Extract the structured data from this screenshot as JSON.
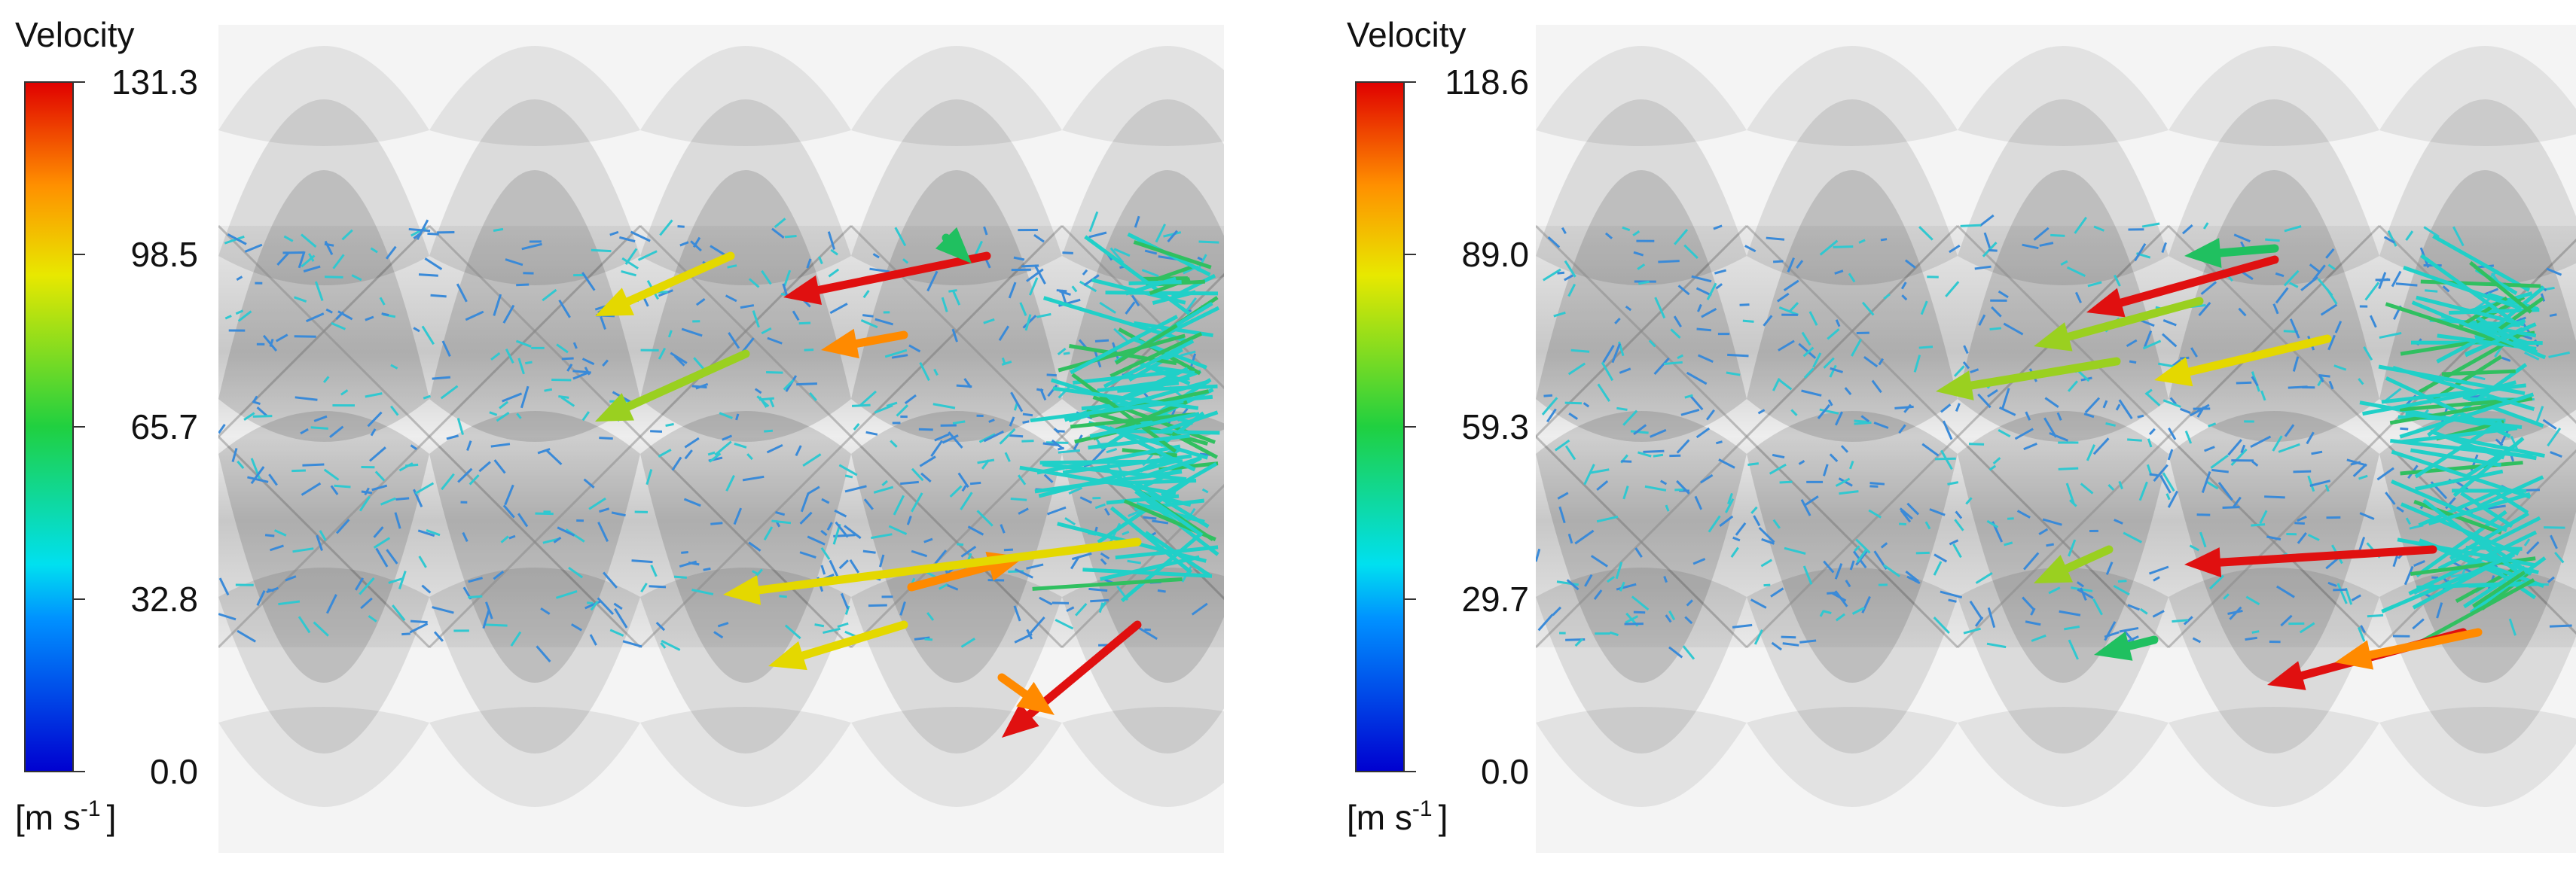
{
  "panels": [
    {
      "legend": {
        "title": "Velocity",
        "ticks": [
          "131.3",
          "98.5",
          "65.7",
          "32.8",
          "0.0"
        ],
        "unit": {
          "base": "[m s",
          "exponent": "-1",
          "close": "]"
        }
      }
    },
    {
      "legend": {
        "title": "Velocity",
        "ticks": [
          "118.6",
          "89.0",
          "59.3",
          "29.7",
          "0.0"
        ],
        "unit": {
          "base": "[m s",
          "exponent": "-1",
          "close": "]"
        }
      }
    }
  ]
}
